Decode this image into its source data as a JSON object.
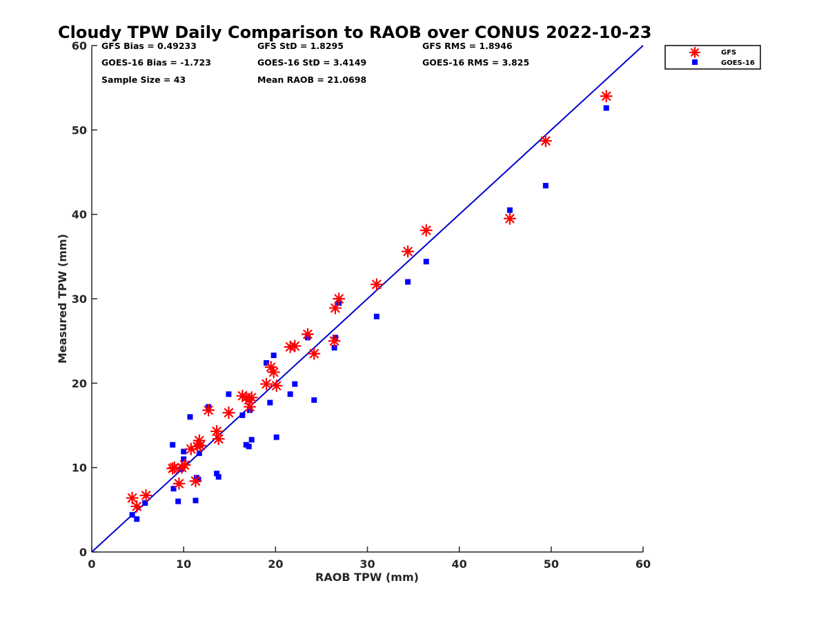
{
  "chart_data": {
    "type": "scatter",
    "title": "Cloudy TPW Daily Comparison to RAOB over CONUS 2022-10-23",
    "xlabel": "RAOB TPW (mm)",
    "ylabel": "Measured TPW (mm)",
    "xlim": [
      0,
      60
    ],
    "ylim": [
      0,
      60
    ],
    "xticks": [
      "0",
      "10",
      "20",
      "30",
      "40",
      "50",
      "60"
    ],
    "yticks": [
      "0",
      "10",
      "20",
      "30",
      "40",
      "50",
      "60"
    ],
    "grid": false,
    "legend_position": "outside-top-right",
    "reference_line": {
      "x": [
        0,
        60
      ],
      "y": [
        0,
        60
      ],
      "color": "#0000cc"
    },
    "stats": {
      "gfs_bias": "GFS Bias = 0.49233",
      "gfs_std": "GFS StD = 1.8295",
      "gfs_rms": "GFS RMS = 1.8946",
      "goes_bias": "GOES-16 Bias = -1.723",
      "goes_std": "GOES-16 StD = 3.4149",
      "goes_rms": "GOES-16 RMS = 3.825",
      "sample_size": "Sample Size = 43",
      "mean_raob": "Mean RAOB = 21.0698"
    },
    "series": [
      {
        "name": "GFS",
        "marker": "asterisk",
        "color": "#ff0000",
        "points": [
          [
            4.4,
            6.4
          ],
          [
            4.9,
            5.4
          ],
          [
            5.9,
            6.7
          ],
          [
            8.8,
            9.9
          ],
          [
            9.0,
            10.0
          ],
          [
            9.5,
            8.1
          ],
          [
            9.8,
            10.0
          ],
          [
            10.1,
            10.3
          ],
          [
            10.8,
            12.2
          ],
          [
            11.3,
            8.4
          ],
          [
            11.5,
            12.5
          ],
          [
            11.7,
            13.2
          ],
          [
            11.8,
            12.6
          ],
          [
            12.7,
            16.8
          ],
          [
            13.6,
            14.3
          ],
          [
            13.8,
            13.4
          ],
          [
            14.9,
            16.5
          ],
          [
            16.4,
            18.5
          ],
          [
            16.8,
            18.3
          ],
          [
            17.1,
            18.0
          ],
          [
            17.2,
            17.2
          ],
          [
            17.4,
            18.3
          ],
          [
            19.0,
            19.9
          ],
          [
            19.5,
            21.9
          ],
          [
            19.8,
            21.3
          ],
          [
            20.1,
            19.7
          ],
          [
            21.6,
            24.3
          ],
          [
            22.1,
            24.4
          ],
          [
            23.5,
            25.8
          ],
          [
            24.2,
            23.5
          ],
          [
            26.4,
            25.0
          ],
          [
            26.5,
            28.9
          ],
          [
            26.9,
            30.0
          ],
          [
            31.0,
            31.7
          ],
          [
            34.4,
            35.6
          ],
          [
            36.4,
            38.1
          ],
          [
            45.5,
            39.5
          ],
          [
            49.4,
            48.7
          ],
          [
            56.0,
            54.0
          ]
        ]
      },
      {
        "name": "GOES-16",
        "marker": "square",
        "color": "#0000ff",
        "points": [
          [
            4.4,
            4.4
          ],
          [
            4.9,
            3.9
          ],
          [
            5.8,
            5.8
          ],
          [
            8.8,
            12.7
          ],
          [
            8.9,
            7.5
          ],
          [
            9.4,
            6.0
          ],
          [
            9.7,
            9.8
          ],
          [
            10.0,
            11.0
          ],
          [
            10.0,
            11.9
          ],
          [
            10.7,
            16.0
          ],
          [
            11.3,
            6.1
          ],
          [
            11.4,
            8.8
          ],
          [
            11.6,
            8.6
          ],
          [
            11.7,
            11.7
          ],
          [
            12.7,
            17.2
          ],
          [
            13.6,
            9.3
          ],
          [
            13.8,
            8.9
          ],
          [
            14.9,
            18.7
          ],
          [
            16.4,
            16.2
          ],
          [
            16.8,
            12.7
          ],
          [
            17.1,
            12.5
          ],
          [
            17.2,
            16.8
          ],
          [
            17.4,
            13.3
          ],
          [
            19.0,
            22.4
          ],
          [
            19.4,
            17.7
          ],
          [
            19.8,
            23.3
          ],
          [
            20.1,
            13.6
          ],
          [
            21.6,
            18.7
          ],
          [
            22.1,
            19.9
          ],
          [
            23.5,
            25.4
          ],
          [
            24.2,
            18.0
          ],
          [
            26.4,
            24.2
          ],
          [
            26.5,
            25.4
          ],
          [
            26.9,
            29.5
          ],
          [
            31.0,
            27.9
          ],
          [
            34.4,
            32.0
          ],
          [
            36.4,
            34.4
          ],
          [
            45.5,
            40.5
          ],
          [
            49.4,
            43.4
          ],
          [
            56.0,
            52.6
          ]
        ]
      }
    ]
  }
}
